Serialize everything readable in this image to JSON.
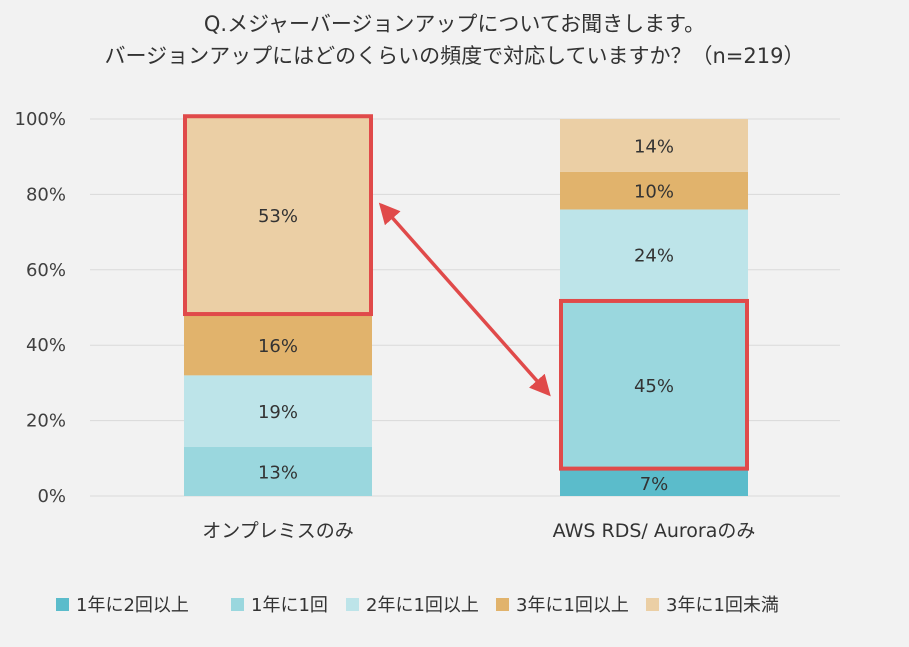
{
  "chart_data": {
    "type": "bar",
    "stacked": true,
    "title": "Q.メジャーバージョンアップについてお聞きします。",
    "subtitle": "バージョンアップにはどのくらいの頻度で対応していますか？（n=219）",
    "categories": [
      "オンプレミスのみ",
      "AWS RDS/ Auroraのみ"
    ],
    "ylim": [
      0,
      100
    ],
    "yticks": [
      0,
      20,
      40,
      60,
      80,
      100
    ],
    "ytick_labels": [
      "0%",
      "20%",
      "40%",
      "60%",
      "80%",
      "100%"
    ],
    "grid": true,
    "legend": "bottom",
    "series": [
      {
        "name": "1年に2回以上",
        "values": [
          0,
          7
        ],
        "labels": [
          "",
          "7%"
        ],
        "color": "#5bbccb"
      },
      {
        "name": "1年に1回",
        "values": [
          13,
          45
        ],
        "labels": [
          "13%",
          "45%"
        ],
        "color": "#9ad7de"
      },
      {
        "name": "2年に1回以上",
        "values": [
          19,
          24
        ],
        "labels": [
          "19%",
          "24%"
        ],
        "color": "#bde4e9"
      },
      {
        "name": "3年に1回以上",
        "values": [
          16,
          10
        ],
        "labels": [
          "16%",
          "10%"
        ],
        "color": "#e1b36c"
      },
      {
        "name": "3年に1回未満",
        "values": [
          53,
          14
        ],
        "labels": [
          "53%",
          "14%"
        ],
        "color": "#ebcfa5"
      }
    ],
    "highlight_color": "#e04a4a",
    "highlights": [
      {
        "category": 0,
        "series": 4
      },
      {
        "category": 1,
        "series": 1
      }
    ]
  }
}
